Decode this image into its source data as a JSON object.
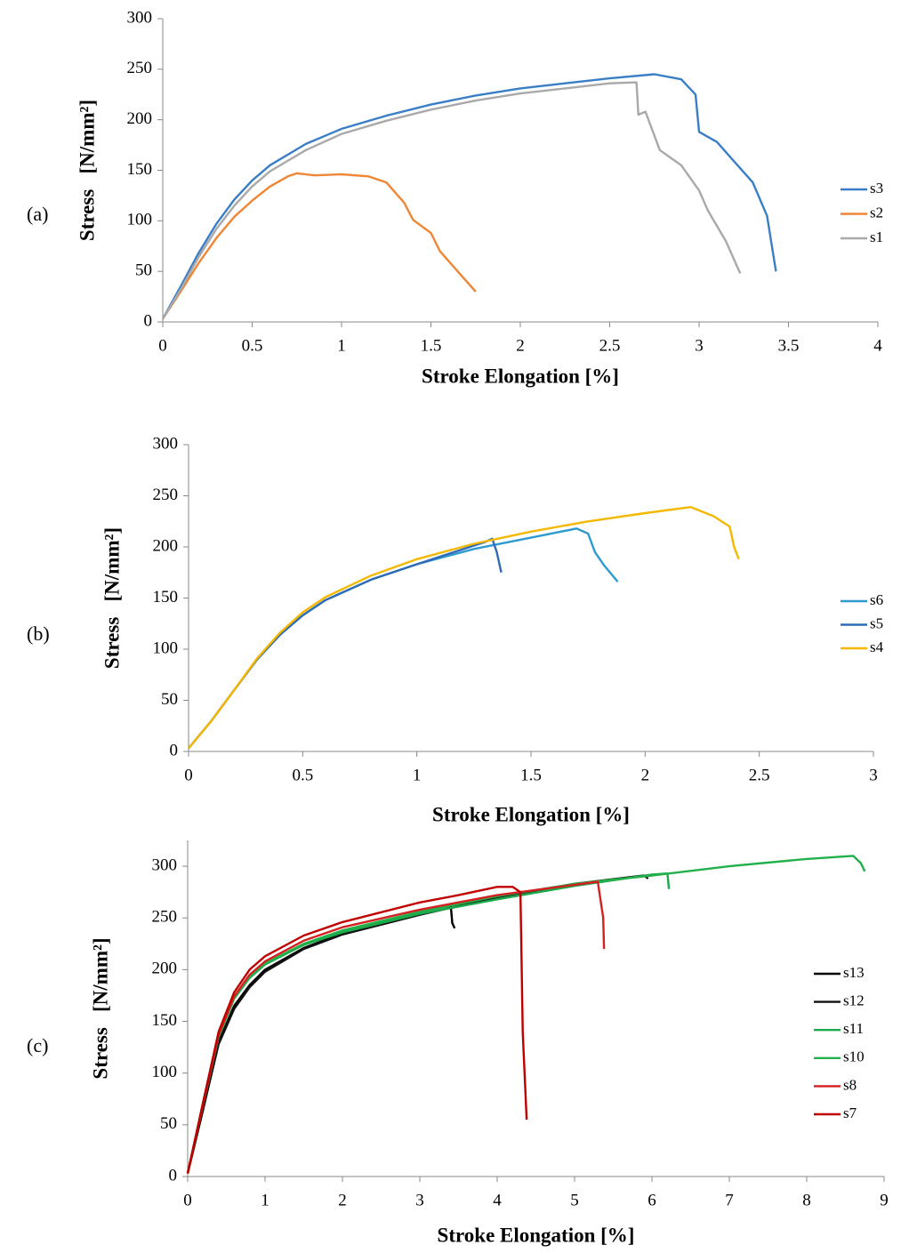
{
  "chart_data": [
    {
      "type": "line",
      "panel": "(a)",
      "xlabel": "Stroke Elongation [%]",
      "ylabel": "Stress   [N/mm²]",
      "xlim": [
        0,
        4
      ],
      "ylim": [
        0,
        300
      ],
      "xticks": [
        0,
        0.5,
        1,
        1.5,
        2,
        2.5,
        3,
        3.5,
        4
      ],
      "yticks": [
        0,
        50,
        100,
        150,
        200,
        250,
        300
      ],
      "series": [
        {
          "name": "s3",
          "color": "#3a7ec6",
          "x": [
            0,
            0.1,
            0.2,
            0.3,
            0.4,
            0.5,
            0.6,
            0.8,
            1,
            1.25,
            1.5,
            1.75,
            2,
            2.25,
            2.5,
            2.75,
            2.9,
            2.98,
            3.0,
            3.1,
            3.2,
            3.3,
            3.38,
            3.43
          ],
          "values": [
            3,
            35,
            68,
            97,
            121,
            140,
            155,
            176,
            191,
            204,
            215,
            224,
            231,
            236,
            241,
            245,
            240,
            225,
            188,
            178,
            158,
            138,
            105,
            50
          ]
        },
        {
          "name": "s2",
          "color": "#ef8636",
          "x": [
            0,
            0.1,
            0.2,
            0.3,
            0.4,
            0.5,
            0.6,
            0.7,
            0.75,
            0.85,
            1.0,
            1.15,
            1.25,
            1.35,
            1.4,
            1.5,
            1.55,
            1.65,
            1.75
          ],
          "values": [
            3,
            30,
            58,
            83,
            104,
            120,
            134,
            144,
            147,
            145,
            146,
            144,
            138,
            118,
            101,
            88,
            70,
            50,
            30
          ]
        },
        {
          "name": "s1",
          "color": "#a9a9a9",
          "x": [
            0,
            0.1,
            0.2,
            0.3,
            0.4,
            0.5,
            0.6,
            0.8,
            1,
            1.25,
            1.5,
            1.75,
            2,
            2.25,
            2.5,
            2.65,
            2.66,
            2.7,
            2.78,
            2.9,
            3.0,
            3.05,
            3.15,
            3.23
          ],
          "values": [
            3,
            32,
            64,
            92,
            115,
            134,
            149,
            170,
            186,
            199,
            210,
            219,
            226,
            231,
            236,
            237,
            205,
            208,
            170,
            155,
            130,
            110,
            80,
            48
          ]
        }
      ]
    },
    {
      "type": "line",
      "panel": "(b)",
      "xlabel": "Stroke Elongation [%]",
      "ylabel": "Stress   [N/mm²]",
      "xlim": [
        0,
        3
      ],
      "ylim": [
        0,
        300
      ],
      "xticks": [
        0,
        0.5,
        1,
        1.5,
        2,
        2.5,
        3
      ],
      "yticks": [
        0,
        50,
        100,
        150,
        200,
        250,
        300
      ],
      "series": [
        {
          "name": "s6",
          "color": "#2e9ad0",
          "x": [
            0,
            0.1,
            0.2,
            0.3,
            0.4,
            0.5,
            0.6,
            0.8,
            1,
            1.25,
            1.5,
            1.7,
            1.75,
            1.78,
            1.82,
            1.88
          ],
          "values": [
            3,
            30,
            60,
            90,
            114,
            133,
            148,
            168,
            183,
            198,
            209,
            218,
            213,
            195,
            182,
            166
          ]
        },
        {
          "name": "s5",
          "color": "#2f6cb5",
          "x": [
            0,
            0.1,
            0.2,
            0.3,
            0.4,
            0.5,
            0.6,
            0.8,
            1,
            1.3,
            1.33,
            1.35,
            1.37
          ],
          "values": [
            3,
            30,
            60,
            90,
            114,
            133,
            148,
            168,
            183,
            205,
            208,
            195,
            175
          ]
        },
        {
          "name": "s4",
          "color": "#f5b800",
          "x": [
            0,
            0.1,
            0.2,
            0.3,
            0.4,
            0.5,
            0.6,
            0.8,
            1,
            1.25,
            1.5,
            1.75,
            2,
            2.2,
            2.3,
            2.37,
            2.39,
            2.41
          ],
          "values": [
            3,
            30,
            60,
            91,
            116,
            136,
            151,
            172,
            188,
            203,
            215,
            225,
            233,
            239,
            230,
            220,
            200,
            188
          ]
        }
      ]
    },
    {
      "type": "line",
      "panel": "(c)",
      "xlabel": "Stroke Elongation [%]",
      "ylabel": "Stress   [N/mm²]",
      "xlim": [
        0,
        9
      ],
      "ylim": [
        0,
        325
      ],
      "xticks": [
        0,
        1,
        2,
        3,
        4,
        5,
        6,
        7,
        8,
        9
      ],
      "yticks": [
        0,
        50,
        100,
        150,
        200,
        250,
        300
      ],
      "series": [
        {
          "name": "s13",
          "color": "#000000",
          "x": [
            0,
            0.2,
            0.4,
            0.6,
            0.8,
            1,
            1.5,
            2,
            2.5,
            3,
            3.4,
            3.42,
            3.45
          ],
          "values": [
            3,
            65,
            130,
            165,
            185,
            200,
            221,
            235,
            246,
            256,
            262,
            245,
            240
          ]
        },
        {
          "name": "s12",
          "color": "#111111",
          "x": [
            0,
            0.2,
            0.4,
            0.6,
            0.8,
            1,
            1.5,
            2,
            3,
            4,
            5,
            5.9,
            5.95
          ],
          "values": [
            3,
            65,
            128,
            162,
            183,
            198,
            220,
            234,
            253,
            270,
            283,
            291,
            288
          ]
        },
        {
          "name": "s11",
          "color": "#1aaa4a",
          "x": [
            0,
            0.2,
            0.4,
            0.6,
            0.8,
            1,
            1.5,
            2,
            3,
            4,
            5,
            6,
            6.2,
            6.22
          ],
          "values": [
            3,
            70,
            135,
            172,
            192,
            205,
            224,
            236,
            254,
            268,
            281,
            292,
            293,
            278
          ]
        },
        {
          "name": "s10",
          "color": "#22b04b",
          "x": [
            0,
            0.2,
            0.4,
            0.6,
            0.8,
            1,
            1.5,
            2,
            3,
            4,
            5,
            6,
            7,
            8,
            8.6,
            8.7,
            8.75
          ],
          "values": [
            3,
            72,
            138,
            173,
            193,
            206,
            225,
            238,
            256,
            271,
            283,
            291,
            300,
            307,
            310,
            303,
            295
          ]
        },
        {
          "name": "s8",
          "color": "#d42020",
          "x": [
            0,
            0.2,
            0.4,
            0.6,
            0.8,
            1,
            1.5,
            2,
            3,
            4,
            5,
            5.3,
            5.33,
            5.37,
            5.38
          ],
          "values": [
            3,
            70,
            137,
            174,
            195,
            208,
            228,
            241,
            258,
            272,
            282,
            285,
            270,
            250,
            220
          ]
        },
        {
          "name": "s7",
          "color": "#c00000",
          "x": [
            0,
            0.2,
            0.4,
            0.6,
            0.8,
            1,
            1.5,
            2,
            3,
            3.5,
            4,
            4.2,
            4.3,
            4.31,
            4.33,
            4.36,
            4.38
          ],
          "values": [
            3,
            72,
            140,
            178,
            200,
            213,
            233,
            246,
            265,
            272,
            280,
            280,
            275,
            230,
            140,
            90,
            55
          ]
        }
      ]
    }
  ]
}
